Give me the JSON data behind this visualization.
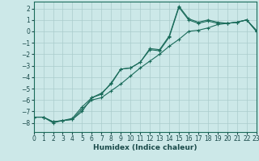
{
  "xlabel": "Humidex (Indice chaleur)",
  "xlim": [
    0,
    23
  ],
  "ylim": [
    -8.8,
    2.6
  ],
  "yticks": [
    2,
    1,
    0,
    -1,
    -2,
    -3,
    -4,
    -5,
    -6,
    -7,
    -8
  ],
  "xticks": [
    0,
    1,
    2,
    3,
    4,
    5,
    6,
    7,
    8,
    9,
    10,
    11,
    12,
    13,
    14,
    15,
    16,
    17,
    18,
    19,
    20,
    21,
    22,
    23
  ],
  "bg_color": "#cce8e8",
  "grid_color": "#aacccc",
  "line_color": "#1a6b5a",
  "line1_y": [
    -7.5,
    -7.5,
    -8.0,
    -7.8,
    -7.7,
    -7.0,
    -5.8,
    -5.5,
    -4.5,
    -3.3,
    -3.2,
    -2.7,
    -1.5,
    -1.6,
    -0.4,
    2.2,
    1.1,
    0.8,
    1.0,
    0.8,
    0.7,
    0.8,
    1.0,
    0.1
  ],
  "line2_y": [
    -7.5,
    -7.5,
    -7.9,
    -7.8,
    -7.6,
    -6.6,
    -5.8,
    -5.4,
    -4.6,
    -3.3,
    -3.2,
    -2.7,
    -1.6,
    -1.7,
    -0.5,
    2.1,
    1.0,
    0.7,
    0.9,
    0.7,
    0.7,
    0.8,
    1.0,
    0.0
  ],
  "line3_y": [
    -7.5,
    -7.5,
    -7.9,
    -7.8,
    -7.7,
    -6.8,
    -6.0,
    -5.8,
    -5.2,
    -4.6,
    -3.9,
    -3.2,
    -2.6,
    -2.0,
    -1.3,
    -0.7,
    0.0,
    0.1,
    0.3,
    0.6,
    0.7,
    0.8,
    1.0,
    0.0
  ],
  "tick_fontsize": 5.5,
  "xlabel_fontsize": 6.5,
  "line_width": 0.8,
  "marker_size": 3.0
}
